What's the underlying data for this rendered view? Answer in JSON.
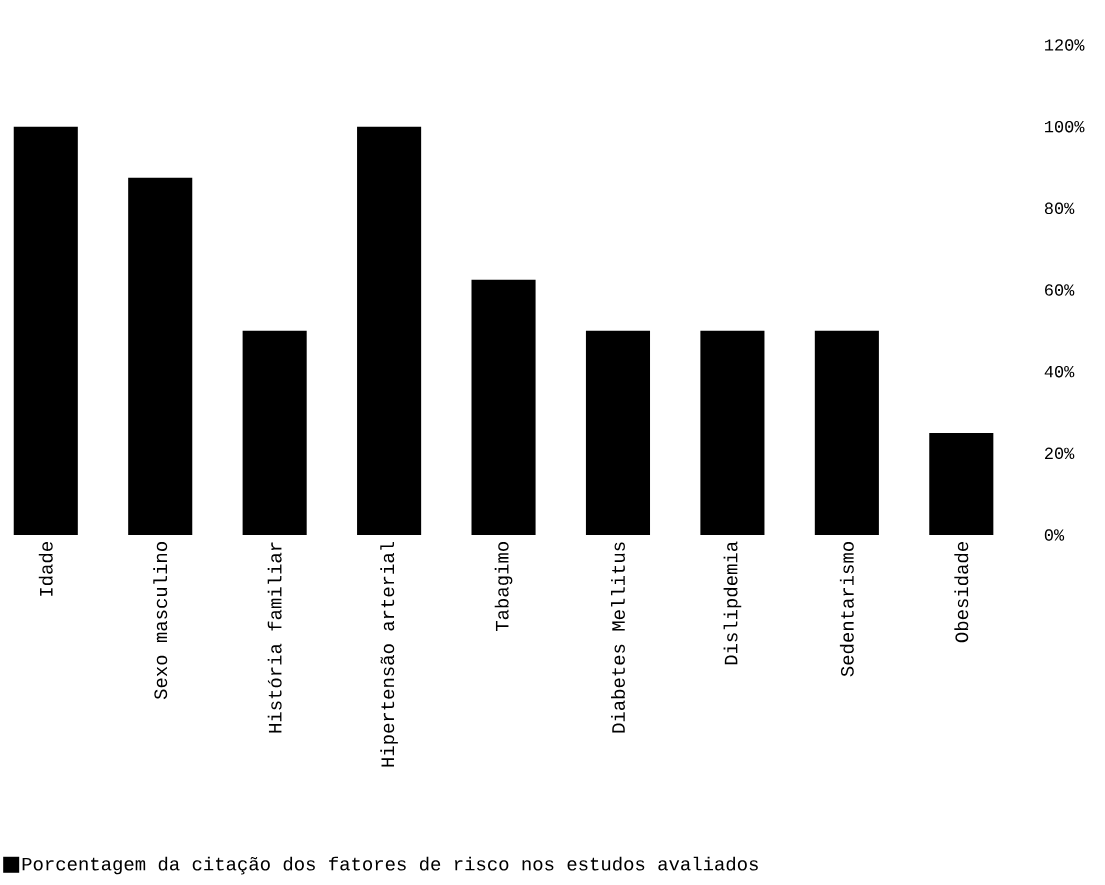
{
  "chart_data": {
    "type": "bar",
    "categories": [
      "Idade",
      "Sexo masculino",
      "História familiar",
      "Hipertensão arterial",
      "Tabagimo",
      "Diabetes Mellitus",
      "Dislipdemia",
      "Sedentarismo",
      "Obesidade"
    ],
    "series": [
      {
        "name": "Porcentagem da citação dos fatores de risco nos estudos avaliados",
        "color": "#000000",
        "values": [
          100,
          87.5,
          50,
          100,
          62.5,
          50,
          50,
          50,
          25
        ]
      }
    ],
    "ylim": [
      0,
      120
    ],
    "yticks": [
      {
        "value": 0,
        "label": "0%"
      },
      {
        "value": 20,
        "label": "20%"
      },
      {
        "value": 40,
        "label": "40%"
      },
      {
        "value": 60,
        "label": "60%"
      },
      {
        "value": 80,
        "label": "80%"
      },
      {
        "value": 100,
        "label": "100%"
      },
      {
        "value": 120,
        "label": "120%"
      }
    ],
    "legend": "bottom"
  }
}
